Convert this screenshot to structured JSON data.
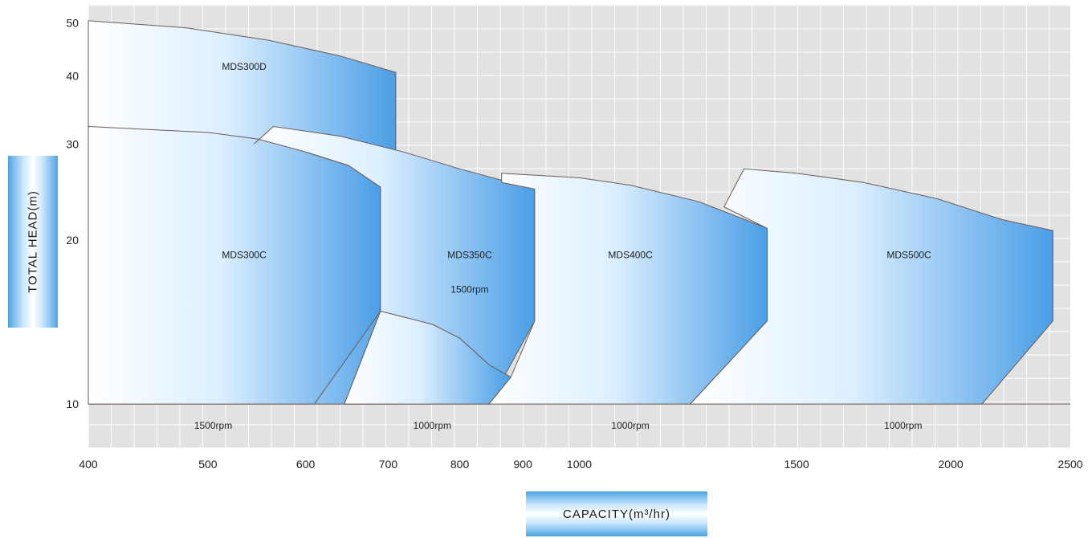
{
  "chart_data": {
    "type": "area",
    "title": "",
    "xlabel": "CAPACITY(m³/hr)",
    "ylabel": "TOTAL HEAD(m)",
    "x_scale": "log",
    "y_scale": "log",
    "xlim": [
      400,
      2500
    ],
    "ylim": [
      8.3,
      54
    ],
    "x_ticks": [
      400,
      500,
      600,
      700,
      800,
      900,
      1000,
      1500,
      2000,
      2500
    ],
    "y_ticks": [
      10,
      20,
      30,
      40,
      50
    ],
    "grid": true,
    "legend": "none",
    "colors": {
      "fill_dark": "#4a9ee6",
      "fill_light": "#ffffff",
      "outline": "#6b5a55",
      "plot_bg": "#e2e2e2"
    },
    "series": [
      {
        "name": "MDS300D",
        "label": "MDS300D",
        "speed": "",
        "polygon": [
          [
            400,
            10.0
          ],
          [
            400,
            50.5
          ],
          [
            480,
            49.0
          ],
          [
            560,
            46.5
          ],
          [
            640,
            43.5
          ],
          [
            710,
            40.6
          ],
          [
            710,
            10.0
          ]
        ]
      },
      {
        "name": "MDS300C",
        "label": "MDS300C",
        "speed": "1500rpm",
        "polygon": [
          [
            400,
            10.0
          ],
          [
            400,
            32.3
          ],
          [
            500,
            31.5
          ],
          [
            550,
            30.6
          ],
          [
            600,
            29.0
          ],
          [
            650,
            27.4
          ],
          [
            690,
            25.0
          ],
          [
            690,
            14.8
          ],
          [
            610,
            10.0
          ]
        ]
      },
      {
        "name": "MDS350C",
        "label": "MDS350C",
        "speed": "1500rpm",
        "polygon": [
          [
            545,
            30.0
          ],
          [
            565,
            32.3
          ],
          [
            640,
            31.0
          ],
          [
            720,
            29.0
          ],
          [
            800,
            27.0
          ],
          [
            920,
            24.8
          ],
          [
            920,
            14.2
          ],
          [
            845,
            10.0
          ],
          [
            645,
            10.0
          ],
          [
            690,
            14.8
          ],
          [
            690,
            25.0
          ],
          [
            650,
            27.4
          ],
          [
            600,
            29.0
          ],
          [
            550,
            30.6
          ]
        ]
      },
      {
        "name": "MDS350C-1000rpm",
        "label": "",
        "speed": "1000rpm",
        "polygon": [
          [
            645,
            10.0
          ],
          [
            690,
            14.8
          ],
          [
            760,
            14.0
          ],
          [
            800,
            13.2
          ],
          [
            845,
            11.8
          ],
          [
            880,
            11.2
          ],
          [
            845,
            10.0
          ]
        ]
      },
      {
        "name": "MDS400C",
        "label": "MDS400C",
        "speed": "1000rpm",
        "polygon": [
          [
            845,
            10.0
          ],
          [
            880,
            11.2
          ],
          [
            920,
            14.2
          ],
          [
            920,
            24.8
          ],
          [
            865,
            25.5
          ],
          [
            865,
            26.5
          ],
          [
            1000,
            26.0
          ],
          [
            1100,
            25.2
          ],
          [
            1250,
            23.5
          ],
          [
            1420,
            21.0
          ],
          [
            1420,
            14.2
          ],
          [
            1230,
            10.0
          ]
        ]
      },
      {
        "name": "MDS500C",
        "label": "MDS500C",
        "speed": "1000rpm",
        "polygon": [
          [
            1230,
            10.0
          ],
          [
            1420,
            14.2
          ],
          [
            1420,
            21.0
          ],
          [
            1310,
            23.0
          ],
          [
            1360,
            27.0
          ],
          [
            1500,
            26.5
          ],
          [
            1700,
            25.5
          ],
          [
            1950,
            23.8
          ],
          [
            2200,
            21.8
          ],
          [
            2420,
            20.8
          ],
          [
            2420,
            14.2
          ],
          [
            2120,
            10.0
          ]
        ]
      }
    ],
    "annotations": [
      {
        "text": "MDS300D",
        "x": 535,
        "y": 41.0
      },
      {
        "text": "MDS300C",
        "x": 535,
        "y": 18.5
      },
      {
        "text": "MDS350C",
        "x": 815,
        "y": 18.5
      },
      {
        "text": "1500rpm",
        "x": 815,
        "y": 16.0
      },
      {
        "text": "MDS400C",
        "x": 1100,
        "y": 18.5
      },
      {
        "text": "MDS500C",
        "x": 1850,
        "y": 18.5
      },
      {
        "text": "1500rpm",
        "x": 505,
        "y": 9.0
      },
      {
        "text": "1000rpm",
        "x": 760,
        "y": 9.0
      },
      {
        "text": "1000rpm",
        "x": 1100,
        "y": 9.0
      },
      {
        "text": "1000rpm",
        "x": 1830,
        "y": 9.0
      }
    ]
  }
}
